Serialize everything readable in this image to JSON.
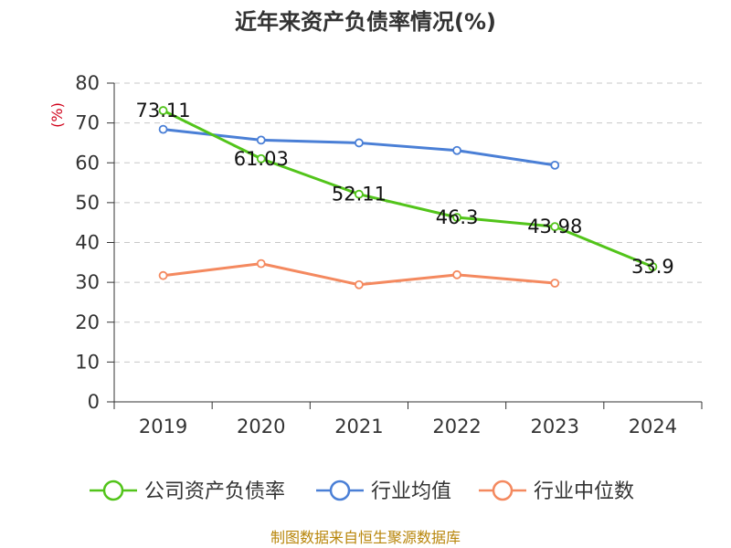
{
  "chart_data": {
    "type": "line",
    "title": "近年来资产负债率情况(%)",
    "ylabel": "(%)",
    "xlabel": "",
    "categories": [
      "2019",
      "2020",
      "2021",
      "2022",
      "2023",
      "2024"
    ],
    "ylim": [
      0,
      80
    ],
    "yticks": [
      0,
      10,
      20,
      30,
      40,
      50,
      60,
      70,
      80
    ],
    "grid": true,
    "legend_position": "bottom",
    "series": [
      {
        "name": "公司资产负债率",
        "color": "#52c41a",
        "values": [
          73.11,
          61.03,
          52.11,
          46.3,
          43.98,
          33.9
        ],
        "labels": [
          "73.11",
          "61.03",
          "52.11",
          "46.3",
          "43.98",
          "33.9"
        ]
      },
      {
        "name": "行业均值",
        "color": "#4a7fd6",
        "values": [
          68.4,
          65.7,
          65.0,
          63.1,
          59.4,
          null
        ]
      },
      {
        "name": "行业中位数",
        "color": "#f4895f",
        "values": [
          31.7,
          34.7,
          29.4,
          31.9,
          29.8,
          null
        ]
      }
    ]
  },
  "source_text": "制图数据来自恒生聚源数据库"
}
